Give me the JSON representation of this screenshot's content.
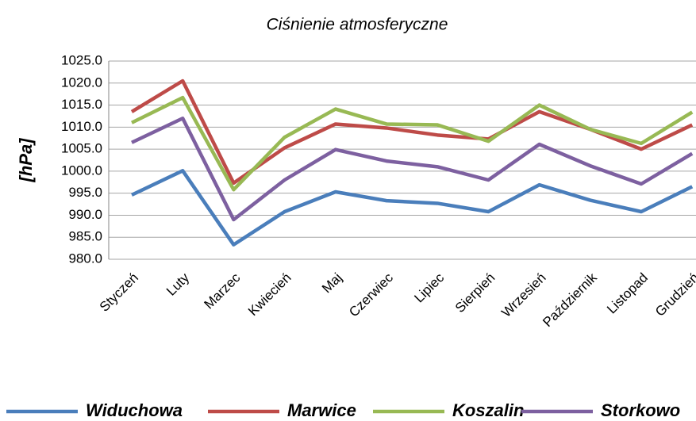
{
  "chart_data": {
    "type": "line",
    "title": "Ciśnienie atmosferyczne",
    "y_label": "[hPa]",
    "categories": [
      "Styczeń",
      "Luty",
      "Marzec",
      "Kwiecień",
      "Maj",
      "Czerwiec",
      "Lipiec",
      "Sierpień",
      "Wrzesień",
      "Październik",
      "Listopad",
      "Grudzień"
    ],
    "series": [
      {
        "name": "Widuchowa",
        "color": "#4a7ebb",
        "values": [
          994.6,
          1000.1,
          983.3,
          990.8,
          995.3,
          993.3,
          992.7,
          990.8,
          996.9,
          993.4,
          990.8,
          996.5
        ]
      },
      {
        "name": "Marwice",
        "color": "#be4b48",
        "values": [
          1013.5,
          1020.5,
          997.3,
          1005.3,
          1010.7,
          1009.8,
          1008.2,
          1007.3,
          1013.5,
          1009.5,
          1005.0,
          1010.5
        ]
      },
      {
        "name": "Koszalin",
        "color": "#98b954",
        "values": [
          1011.0,
          1016.7,
          995.8,
          1007.7,
          1014.1,
          1010.7,
          1010.5,
          1006.8,
          1015.0,
          1009.5,
          1006.3,
          1013.4
        ]
      },
      {
        "name": "Storkowo",
        "color": "#7d60a0",
        "values": [
          1006.5,
          1012.0,
          989.0,
          998.0,
          1004.9,
          1002.3,
          1001.0,
          998.0,
          1006.1,
          1001.2,
          997.1,
          1004.0
        ]
      }
    ],
    "ylim": [
      980,
      1025
    ],
    "yticks": [
      {
        "value": 980,
        "label": "980.0"
      },
      {
        "value": 985,
        "label": "985.0"
      },
      {
        "value": 990,
        "label": "990.0"
      },
      {
        "value": 995,
        "label": "995.0"
      },
      {
        "value": 1000,
        "label": "1000.0"
      },
      {
        "value": 1005,
        "label": "1005.0"
      },
      {
        "value": 1010,
        "label": "1010.0"
      },
      {
        "value": 1015,
        "label": "1015.0"
      },
      {
        "value": 1020,
        "label": "1020.0"
      },
      {
        "value": 1025,
        "label": "1025.0"
      }
    ],
    "grid": true,
    "legend": "bottom"
  }
}
